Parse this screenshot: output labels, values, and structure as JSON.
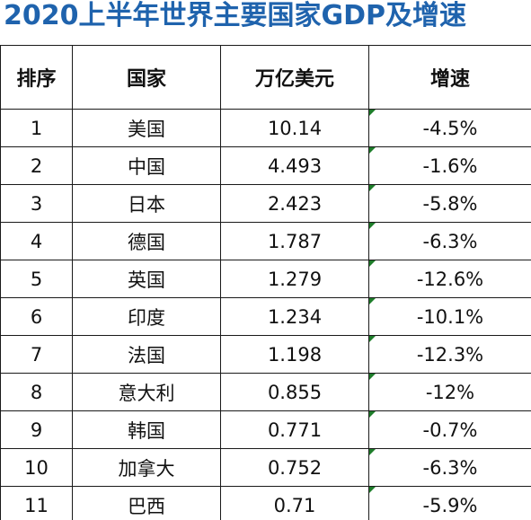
{
  "title": "2020上半年世界主要国家GDP及增速",
  "colors": {
    "title": "#1f63ad",
    "border": "#1a1a1a",
    "cell_flag": "#1e7d2a"
  },
  "table": {
    "headers": [
      "排序",
      "国家",
      "万亿美元",
      "增速"
    ],
    "rows": [
      {
        "rank": "1",
        "country": "美国",
        "gdp": "10.14",
        "growth": "-4.5%"
      },
      {
        "rank": "2",
        "country": "中国",
        "gdp": "4.493",
        "growth": "-1.6%"
      },
      {
        "rank": "3",
        "country": "日本",
        "gdp": "2.423",
        "growth": "-5.8%"
      },
      {
        "rank": "4",
        "country": "德国",
        "gdp": "1.787",
        "growth": "-6.3%"
      },
      {
        "rank": "5",
        "country": "英国",
        "gdp": "1.279",
        "growth": "-12.6%"
      },
      {
        "rank": "6",
        "country": "印度",
        "gdp": "1.234",
        "growth": "-10.1%"
      },
      {
        "rank": "7",
        "country": "法国",
        "gdp": "1.198",
        "growth": "-12.3%"
      },
      {
        "rank": "8",
        "country": "意大利",
        "gdp": "0.855",
        "growth": "-12%"
      },
      {
        "rank": "9",
        "country": "韩国",
        "gdp": "0.771",
        "growth": "-0.7%"
      },
      {
        "rank": "10",
        "country": "加拿大",
        "gdp": "0.752",
        "growth": "-6.3%"
      },
      {
        "rank": "11",
        "country": "巴西",
        "gdp": "0.71",
        "growth": "-5.9%"
      }
    ]
  }
}
